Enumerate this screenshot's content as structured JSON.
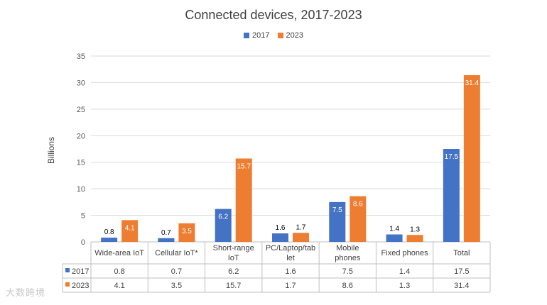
{
  "chart_data": {
    "type": "bar",
    "title": "Connected devices, 2017-2023",
    "ylabel": "Billions",
    "xlabel": "",
    "ylim": [
      0,
      35
    ],
    "yticks": [
      0,
      5,
      10,
      15,
      20,
      25,
      30,
      35
    ],
    "grid": true,
    "legend_position": "top",
    "categories": [
      "Wide-area IoT",
      "Cellular IoT*",
      "Short-range IoT",
      "PC/Laptop/tablet",
      "Mobile phones",
      "Fixed phones",
      "Total"
    ],
    "category_lines": [
      [
        "Wide-area IoT"
      ],
      [
        "Cellular IoT*"
      ],
      [
        "Short-range",
        "IoT"
      ],
      [
        "PC/Laptop/tab",
        "let"
      ],
      [
        "Mobile",
        "phones"
      ],
      [
        "Fixed phones"
      ],
      [
        "Total"
      ]
    ],
    "series": [
      {
        "name": "2017",
        "color": "#4472c4",
        "values": [
          0.8,
          0.7,
          6.2,
          1.6,
          7.5,
          1.4,
          17.5
        ]
      },
      {
        "name": "2023",
        "color": "#ed7d31",
        "values": [
          4.1,
          3.5,
          15.7,
          1.7,
          8.6,
          1.3,
          31.4
        ]
      }
    ]
  },
  "watermark": "大数跨境"
}
